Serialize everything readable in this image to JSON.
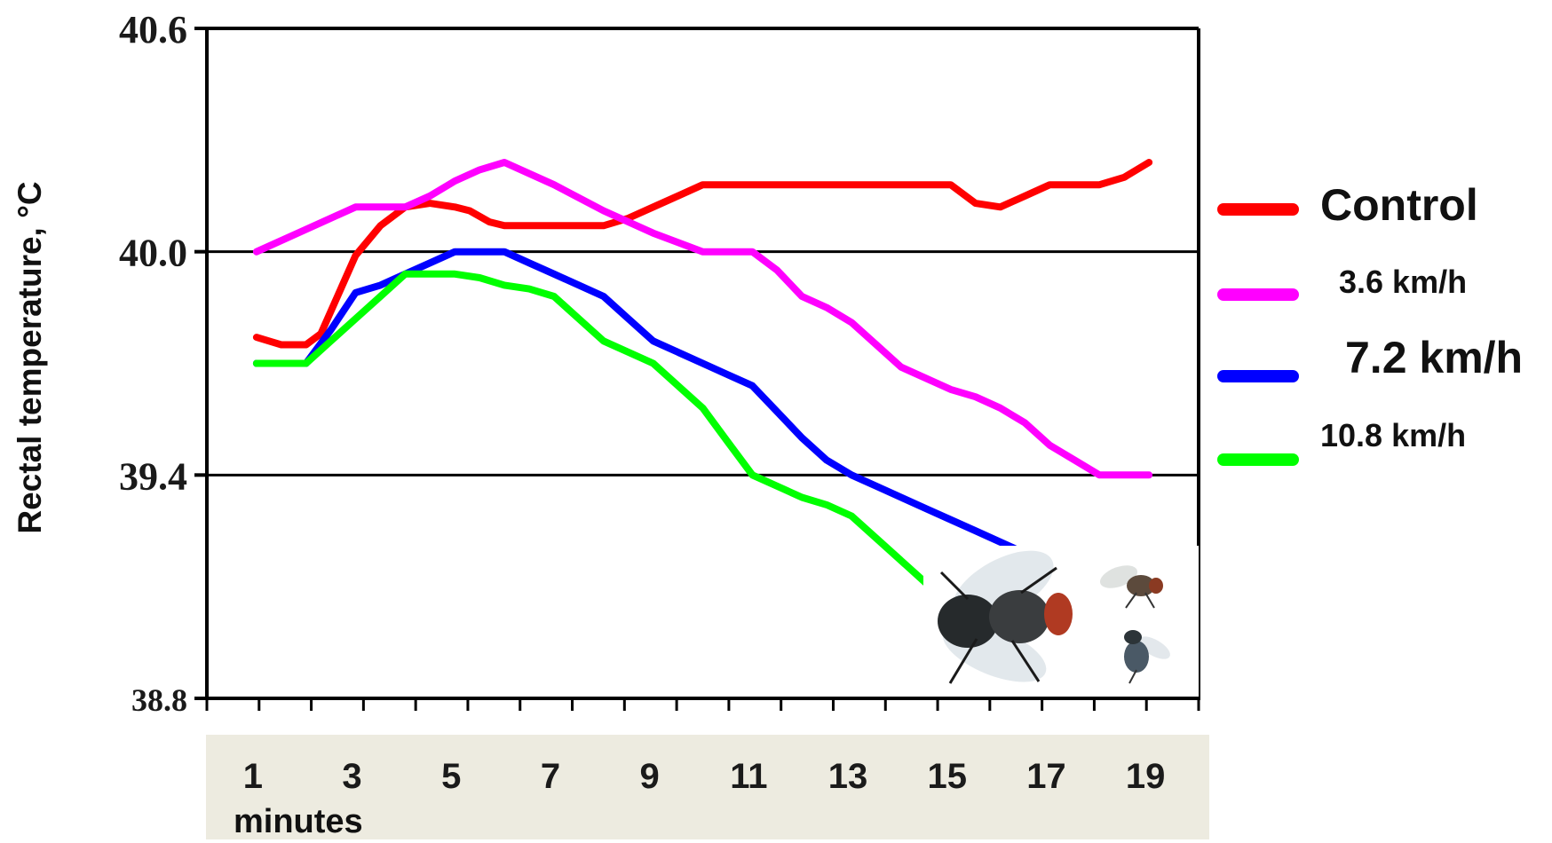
{
  "chart_data": {
    "type": "line",
    "ylabel": "Rectal temperature, °C",
    "xlabel": "minutes",
    "ylim": [
      38.8,
      40.6
    ],
    "xlim": [
      0,
      20
    ],
    "y_ticks": [
      "40.6",
      "40.0",
      "39.4",
      "38.8"
    ],
    "y_tick_values": [
      40.6,
      40.0,
      39.4,
      38.8
    ],
    "x_ticks": [
      "1",
      "3",
      "5",
      "7",
      "9",
      "11",
      "13",
      "15",
      "17",
      "19"
    ],
    "x_tick_values": [
      1,
      3,
      5,
      7,
      9,
      11,
      13,
      15,
      17,
      19
    ],
    "gridlines_y": [
      40.0,
      39.4
    ],
    "legend_placement": "right",
    "series": [
      {
        "name": "Control",
        "color": "#ff0000",
        "x": [
          1,
          1.5,
          2,
          2.3,
          2.7,
          3,
          3.5,
          4,
          4.5,
          5,
          5.3,
          5.7,
          6,
          6.5,
          7,
          8,
          8.5,
          9,
          9.5,
          10,
          11,
          12,
          13,
          14,
          15,
          15.5,
          16,
          16.5,
          17,
          17.5,
          18,
          18.5,
          19
        ],
        "y": [
          39.77,
          39.75,
          39.75,
          39.78,
          39.9,
          39.99,
          40.07,
          40.12,
          40.13,
          40.12,
          40.11,
          40.08,
          40.07,
          40.07,
          40.07,
          40.07,
          40.09,
          40.12,
          40.15,
          40.18,
          40.18,
          40.18,
          40.18,
          40.18,
          40.18,
          40.13,
          40.12,
          40.15,
          40.18,
          40.18,
          40.18,
          40.2,
          40.24
        ]
      },
      {
        "name": "3.6 km/h",
        "color": "#ff00ff",
        "x": [
          1,
          2,
          3,
          3.5,
          4,
          4.5,
          5,
          5.5,
          6,
          7,
          8,
          9,
          10,
          11,
          11.5,
          12,
          12.5,
          13,
          13.5,
          14,
          15,
          15.5,
          16,
          16.5,
          17,
          17.5,
          18,
          18.5,
          19
        ],
        "y": [
          40.0,
          40.06,
          40.12,
          40.12,
          40.12,
          40.15,
          40.19,
          40.22,
          40.24,
          40.18,
          40.11,
          40.05,
          40.0,
          40.0,
          39.95,
          39.88,
          39.85,
          39.81,
          39.75,
          39.69,
          39.63,
          39.61,
          39.58,
          39.54,
          39.48,
          39.44,
          39.4,
          39.4,
          39.4
        ]
      },
      {
        "name": "7.2 km/h",
        "color": "#0000ff",
        "x": [
          1,
          1.5,
          2,
          2.5,
          3,
          3.5,
          4,
          4.5,
          5,
          5.5,
          6,
          6.5,
          7,
          7.5,
          8,
          8.5,
          9,
          9.5,
          10,
          10.5,
          11,
          11.5,
          12,
          12.5,
          13,
          13.5,
          14,
          14.5,
          15,
          15.5,
          16,
          16.5,
          17,
          17.5
        ],
        "y": [
          39.7,
          39.7,
          39.7,
          39.79,
          39.89,
          39.91,
          39.94,
          39.97,
          40.0,
          40.0,
          40.0,
          39.97,
          39.94,
          39.91,
          39.88,
          39.82,
          39.76,
          39.73,
          39.7,
          39.67,
          39.64,
          39.57,
          39.5,
          39.44,
          39.4,
          39.37,
          39.34,
          39.31,
          39.28,
          39.25,
          39.22,
          39.19,
          39.16,
          39.13
        ]
      },
      {
        "name": "10.8 km/h",
        "color": "#00ff00",
        "x": [
          1,
          1.5,
          2,
          2.5,
          3,
          3.5,
          4,
          4.5,
          5,
          5.5,
          6,
          6.5,
          7,
          7.5,
          8,
          8.5,
          9,
          9.5,
          10,
          10.5,
          11,
          11.5,
          12,
          12.5,
          13,
          13.5,
          14,
          14.5
        ],
        "y": [
          39.7,
          39.7,
          39.7,
          39.76,
          39.82,
          39.88,
          39.94,
          39.94,
          39.94,
          39.93,
          39.91,
          39.9,
          39.88,
          39.82,
          39.76,
          39.73,
          39.7,
          39.64,
          39.58,
          39.49,
          39.4,
          39.37,
          39.34,
          39.32,
          39.29,
          39.23,
          39.17,
          39.11
        ]
      }
    ]
  },
  "inset_image": {
    "description_icon": "flies-photo-icon"
  }
}
